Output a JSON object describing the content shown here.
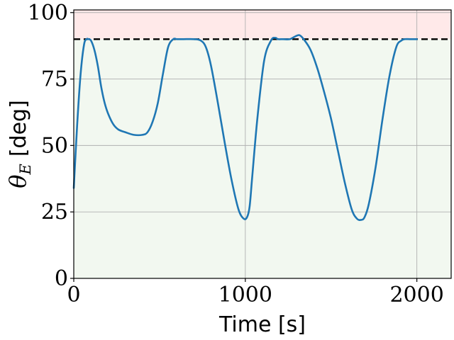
{
  "chart_data": {
    "type": "line",
    "xlabel": "Time [s]",
    "ylabel": {
      "symbol": "θ",
      "subscript": "E",
      "unit": "[deg]"
    },
    "xlim": [
      0,
      2200
    ],
    "ylim": [
      0,
      101
    ],
    "xticks": [
      0,
      1000,
      2000
    ],
    "yticks": [
      0,
      25,
      50,
      75,
      100
    ],
    "grid": true,
    "threshold": {
      "value": 90,
      "style": "dashed",
      "color": "#000000"
    },
    "regions": [
      {
        "from": 0,
        "to": 90,
        "color": "#f2f8f0"
      },
      {
        "from": 90,
        "to": 101,
        "color": "#ffe9e9"
      }
    ],
    "series": [
      {
        "color": "#1f77b4",
        "x": [
          0,
          20,
          40,
          60,
          75,
          85,
          100,
          120,
          140,
          160,
          180,
          200,
          230,
          260,
          300,
          350,
          400,
          430,
          460,
          490,
          520,
          550,
          580,
          600,
          615,
          640,
          700,
          740,
          770,
          800,
          840,
          880,
          920,
          960,
          990,
          1010,
          1025,
          1040,
          1070,
          1110,
          1150,
          1175,
          1190,
          1220,
          1260,
          1290,
          1315,
          1340,
          1380,
          1420,
          1460,
          1500,
          1540,
          1580,
          1620,
          1650,
          1675,
          1695,
          1720,
          1760,
          1800,
          1840,
          1880,
          1910,
          1930,
          1960,
          2000
        ],
        "y": [
          34,
          58,
          77,
          88,
          90,
          90,
          89.5,
          86,
          80,
          72,
          66,
          62,
          58,
          56,
          55,
          54,
          54,
          55,
          59,
          66,
          77,
          87,
          90,
          90,
          90,
          90,
          90,
          89.5,
          87,
          80,
          66,
          51,
          37,
          26,
          22.5,
          23,
          27,
          38,
          60,
          82,
          89.5,
          90.5,
          90,
          90,
          90,
          91,
          91.5,
          90,
          86,
          79,
          70,
          60,
          48,
          36,
          26,
          22.5,
          22,
          23,
          28,
          42,
          60,
          76,
          87,
          89.5,
          90,
          90,
          90
        ]
      }
    ]
  }
}
